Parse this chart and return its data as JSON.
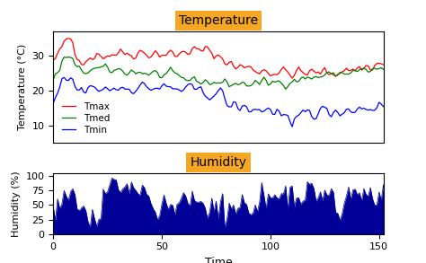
{
  "title_temp": "Temperature",
  "title_humid": "Humidity",
  "xlabel": "Time",
  "ylabel_temp": "Temperature (°C)",
  "ylabel_humid": "Humidity (%)",
  "temp_ylim": [
    5,
    37
  ],
  "humid_ylim": [
    0,
    105
  ],
  "temp_yticks": [
    10,
    20,
    30
  ],
  "humid_yticks": [
    0,
    25,
    50,
    75,
    100
  ],
  "xticks": [
    0,
    50,
    100,
    150
  ],
  "n_points": 155,
  "title_bg": "#F5A623",
  "title_fg": "black",
  "line_colors": [
    "red",
    "green",
    "blue"
  ],
  "legend_labels": [
    "Tmax",
    "Tmed",
    "Tmin"
  ],
  "fill_color": "#000099",
  "bg_color": "white",
  "seed": 42
}
